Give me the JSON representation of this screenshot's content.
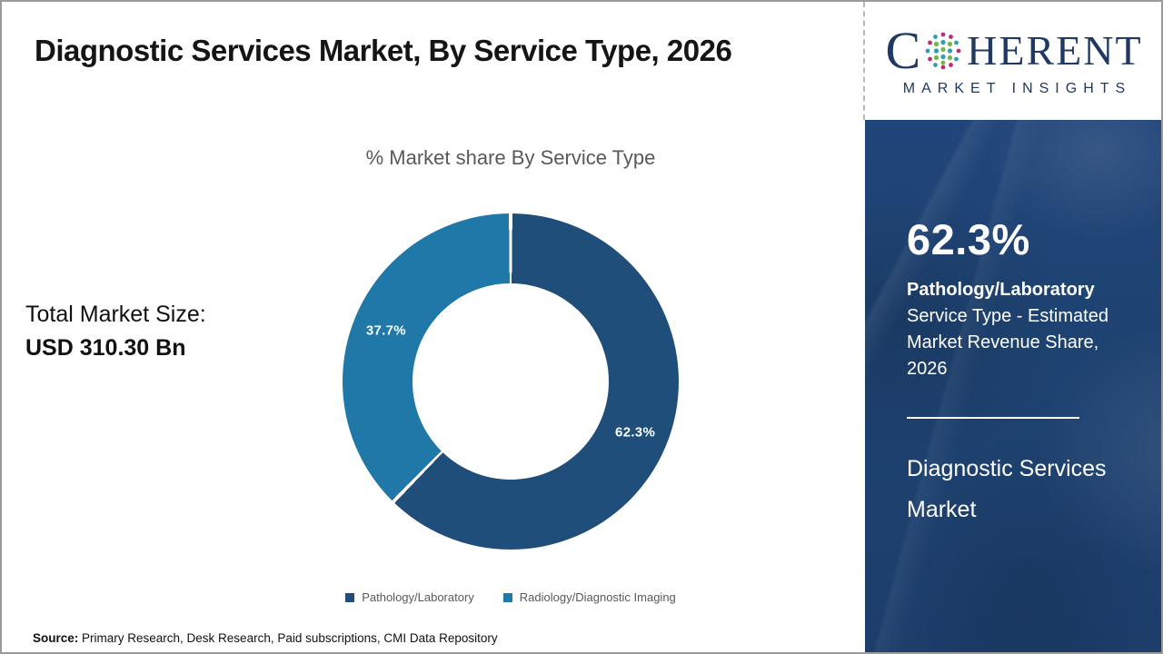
{
  "header": {
    "title": "Diagnostic Services Market, By Service Type, 2026"
  },
  "logo": {
    "brand_prefix": "C",
    "brand_suffix": "HERENT",
    "brand_subtitle": "MARKET INSIGHTS",
    "globe_icon": "dotted-globe",
    "brand_color": "#1f3864"
  },
  "left_panel": {
    "total_label": "Total Market Size:",
    "total_value": "USD 310.30 Bn"
  },
  "chart": {
    "title": "% Market share By Service Type"
  },
  "chart_data": {
    "type": "pie",
    "donut": true,
    "title": "% Market share By Service Type",
    "categories": [
      "Pathology/Laboratory",
      "Radiology/Diagnostic Imaging"
    ],
    "values": [
      62.3,
      37.7
    ],
    "data_labels": [
      "62.3%",
      "37.7%"
    ],
    "colors": [
      "#1E4E79",
      "#1F78A8"
    ],
    "start_angle_deg": 0,
    "direction": "clockwise",
    "legend_position": "bottom",
    "inner_radius_ratio": 0.58
  },
  "sidebar": {
    "stat_value": "62.3%",
    "stat_label_bold": "Pathology/Laboratory",
    "stat_label_rest": " Service Type - Estimated Market Revenue Share, 2026",
    "market_name": "Diagnostic Services Market"
  },
  "footer": {
    "source_label": "Source:",
    "source_text": " Primary Research, Desk Research, Paid subscriptions, CMI Data Repository"
  },
  "colors": {
    "sidebar_bg": "#1E4373",
    "donut_dark": "#1E4E79",
    "donut_teal": "#1F78A8",
    "muted_text": "#595959"
  }
}
